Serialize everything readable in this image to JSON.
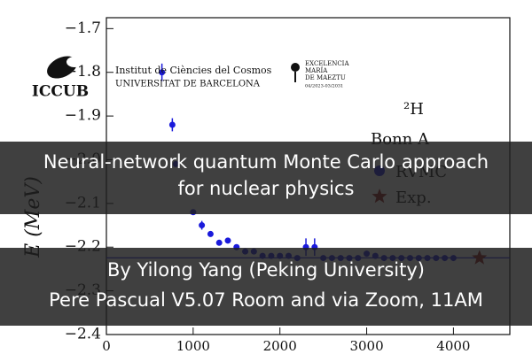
{
  "chart_data": {
    "type": "scatter",
    "y_label": "E (MeV)",
    "annotations": [
      "²H",
      "Bonn A"
    ],
    "xlim": [
      0,
      4650
    ],
    "ylim": [
      -2.4,
      -1.675
    ],
    "xticks": [
      0,
      1000,
      2000,
      3000,
      4000
    ],
    "yticks": [
      {
        "value": -1.7,
        "label": "−1.7"
      },
      {
        "value": -1.8,
        "label": "−1.8"
      },
      {
        "value": -1.9,
        "label": "−1.9"
      },
      {
        "value": -2.0,
        "label": "−2.0"
      },
      {
        "value": -2.1,
        "label": "−2.1"
      },
      {
        "value": -2.2,
        "label": "−2.2"
      },
      {
        "value": -2.3,
        "label": "−2.3"
      },
      {
        "value": -2.4,
        "label": "−2.4"
      }
    ],
    "series": [
      {
        "name": "RVMC",
        "color": "#1a1adb",
        "marker": "circle",
        "x": [
          640,
          760,
          800,
          1000,
          1100,
          1200,
          1300,
          1400,
          1500,
          1600,
          1700,
          1800,
          1900,
          2000,
          2100,
          2200,
          2300,
          2400,
          2500,
          2600,
          2700,
          2800,
          2900,
          3000,
          3100,
          3200,
          3300,
          3400,
          3500,
          3600,
          3700,
          3800,
          3900,
          4000
        ],
        "values": [
          -1.8,
          -1.92,
          -2.01,
          -2.12,
          -2.15,
          -2.17,
          -2.19,
          -2.185,
          -2.2,
          -2.21,
          -2.21,
          -2.22,
          -2.22,
          -2.22,
          -2.22,
          -2.225,
          -2.2,
          -2.2,
          -2.225,
          -2.225,
          -2.225,
          -2.225,
          -2.225,
          -2.215,
          -2.22,
          -2.225,
          -2.225,
          -2.225,
          -2.225,
          -2.225,
          -2.225,
          -2.225,
          -2.225,
          -2.225
        ],
        "errors": [
          0.02,
          0.015,
          0.005,
          0.005,
          0.01,
          0.005,
          0.005,
          0.005,
          0.005,
          0.005,
          0.005,
          0.005,
          0.005,
          0.005,
          0.005,
          0.005,
          0.02,
          0.02,
          0.005,
          0.005,
          0.005,
          0.005,
          0.005,
          0.005,
          0.005,
          0.005,
          0.005,
          0.005,
          0.005,
          0.005,
          0.005,
          0.005,
          0.005,
          0.005
        ]
      },
      {
        "name": "Exp.",
        "color": "#8b1a1a",
        "marker": "star",
        "x": [
          4300
        ],
        "values": [
          -2.2246
        ]
      }
    ]
  },
  "logos": {
    "iccub": "ICCUB",
    "institute": "Institut de Ciències del Cosmos",
    "university": "UNIVERSITAT DE BARCELONA",
    "excellence": [
      "EXCELENCIA",
      "MARÍA",
      "DE MAEZTU",
      "04/2023-03/2031"
    ]
  },
  "banner": {
    "title": [
      "Neural-network quantum Monte Carlo approach",
      "for nuclear physics"
    ],
    "details": [
      "By Yilong Yang (Peking University)",
      "Pere Pascual V5.07 Room and via Zoom, 11AM"
    ]
  }
}
